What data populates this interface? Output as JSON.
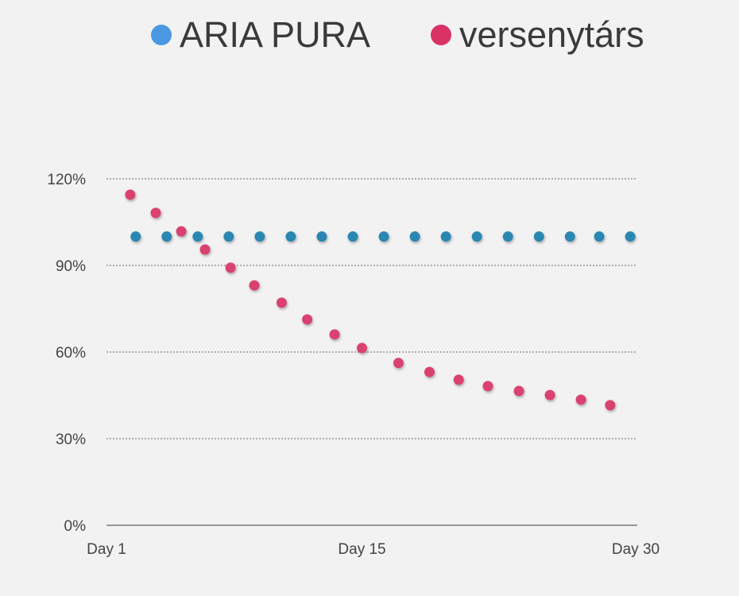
{
  "chart_data": {
    "type": "scatter",
    "title": "",
    "xlabel": "",
    "ylabel": "",
    "xlim": [
      1,
      30
    ],
    "ylim": [
      0,
      120
    ],
    "x_ticks": [
      {
        "value": 1,
        "label": "Day 1"
      },
      {
        "value": 15,
        "label": "Day 15"
      },
      {
        "value": 30,
        "label": "Day 30"
      }
    ],
    "y_ticks": [
      {
        "value": 0,
        "label": "0%"
      },
      {
        "value": 30,
        "label": "30%"
      },
      {
        "value": 60,
        "label": "60%"
      },
      {
        "value": 90,
        "label": "90%"
      },
      {
        "value": 120,
        "label": "120%"
      }
    ],
    "grid": "horizontal dotted",
    "legend_position": "top",
    "series": [
      {
        "name": "ARIA PURA",
        "color": "#2b87b2",
        "legend_color": "#4a98e2",
        "x": [
          2.6,
          4.3,
          6.0,
          7.7,
          9.4,
          11.1,
          12.8,
          14.5,
          16.2,
          17.9,
          19.6,
          21.3,
          23.0,
          24.7,
          26.4,
          28.0,
          29.7
        ],
        "y": [
          100,
          100,
          100,
          100,
          100,
          100,
          100,
          100,
          100,
          100,
          100,
          100,
          100,
          100,
          100,
          100,
          100
        ]
      },
      {
        "name": "versenytárs",
        "color": "#d9436f",
        "legend_color": "#d93366",
        "x": [
          2.3,
          3.7,
          5.1,
          6.4,
          7.8,
          9.1,
          10.6,
          12.0,
          13.5,
          15.0,
          17.0,
          18.7,
          20.3,
          21.9,
          23.6,
          25.3,
          27.0,
          28.6
        ],
        "y": [
          114.5,
          108.2,
          101.8,
          95.5,
          89.2,
          83.1,
          77.1,
          71.3,
          66.1,
          61.4,
          56.2,
          53.1,
          50.4,
          48.2,
          46.5,
          45.1,
          43.5,
          41.6
        ]
      }
    ]
  }
}
